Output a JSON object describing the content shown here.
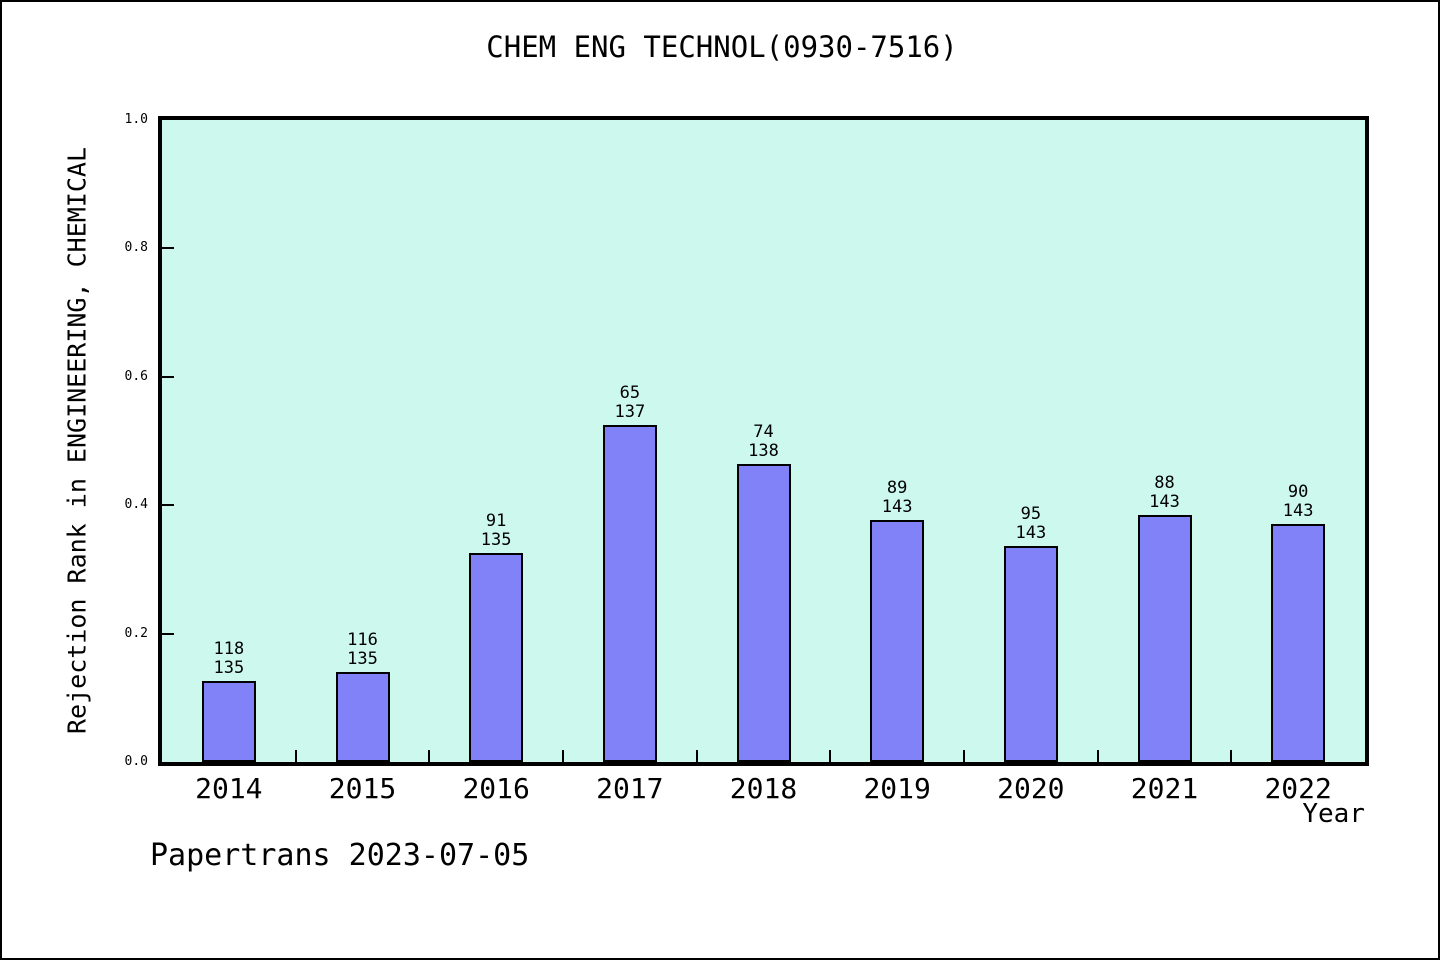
{
  "title": "CHEM ENG TECHNOL(0930-7516)",
  "footer": {
    "watermark": "Papertrans 2023-07-05"
  },
  "chart_data": {
    "type": "bar",
    "title": "CHEM ENG TECHNOL(0930-7516)",
    "xlabel": "Year",
    "ylabel": "Rejection Rank in ENGINEERING, CHEMICAL",
    "ylim": [
      0.0,
      1.0
    ],
    "ytick_values": [
      0.0,
      0.2,
      0.4,
      0.6,
      0.8,
      1.0
    ],
    "ytick_labels": [
      "0.0",
      "0.2",
      "0.4",
      "0.6",
      "0.8",
      "1.0"
    ],
    "grid": false,
    "legend": "none",
    "categories": [
      "2014",
      "2015",
      "2016",
      "2017",
      "2018",
      "2019",
      "2020",
      "2021",
      "2022"
    ],
    "series": [
      {
        "name": "Rejection Rank",
        "values": [
          0.1259,
          0.1407,
          0.3259,
          0.5255,
          0.4638,
          0.3776,
          0.3357,
          0.3846,
          0.3706
        ],
        "bar_labels": [
          {
            "numerator": "118",
            "denominator": "135"
          },
          {
            "numerator": "116",
            "denominator": "135"
          },
          {
            "numerator": "91",
            "denominator": "135"
          },
          {
            "numerator": "65",
            "denominator": "137"
          },
          {
            "numerator": "74",
            "denominator": "138"
          },
          {
            "numerator": "89",
            "denominator": "143"
          },
          {
            "numerator": "95",
            "denominator": "143"
          },
          {
            "numerator": "88",
            "denominator": "143"
          },
          {
            "numerator": "90",
            "denominator": "143"
          }
        ]
      }
    ],
    "colors": {
      "bar_fill": "#8282f8",
      "bar_edge": "#000000",
      "plot_background": "#ccf8ee",
      "page_background": "#ffffff",
      "text": "#000000"
    }
  }
}
